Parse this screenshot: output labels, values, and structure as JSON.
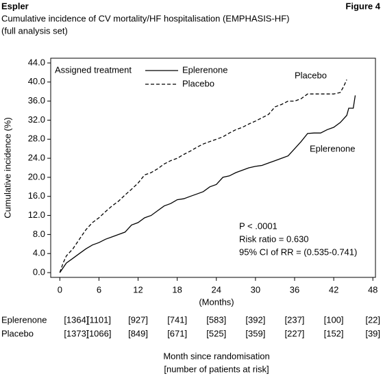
{
  "header": {
    "left": "Espler",
    "right": "Figure 4"
  },
  "chart_data": {
    "type": "line",
    "title": "Cumulative incidence of CV mortality/HF hospitalisation (EMPHASIS-HF)",
    "subtitle": "(full analysis set)",
    "y_label": "Cumulative incidence (%)",
    "x_label": "(Months)",
    "legend_title": "Assigned treatment",
    "xlim": [
      -1.4,
      48.4
    ],
    "ylim": [
      -1,
      45
    ],
    "xticks": [
      0,
      6,
      12,
      18,
      24,
      30,
      36,
      42,
      48
    ],
    "yticks": [
      {
        "value": 0,
        "label": "0.0"
      },
      {
        "value": 4,
        "label": "4.0"
      },
      {
        "value": 8,
        "label": "8.0"
      },
      {
        "value": 12,
        "label": "12.0"
      },
      {
        "value": 16,
        "label": "16.0"
      },
      {
        "value": 20,
        "label": "20.0"
      },
      {
        "value": 24,
        "label": "24.0"
      },
      {
        "value": 28,
        "label": "28.0"
      },
      {
        "value": 32,
        "label": "32.0"
      },
      {
        "value": 36,
        "label": "36.0"
      },
      {
        "value": 40,
        "label": "40.0"
      },
      {
        "value": 44,
        "label": "44.0"
      }
    ],
    "series": [
      {
        "name": "Eplerenone",
        "color": "#000000",
        "dash": false,
        "x": [
          0,
          1,
          2,
          3,
          4,
          5,
          6,
          7,
          8,
          9,
          10,
          11,
          12,
          13,
          14,
          15,
          16,
          17,
          18,
          19,
          20,
          21,
          22,
          23,
          24,
          25,
          26,
          27,
          28,
          29,
          30,
          31,
          32,
          33,
          34,
          35,
          36,
          37,
          38,
          39,
          40,
          41,
          42,
          43,
          44,
          44.3,
          45,
          45.3
        ],
        "values": [
          0,
          2,
          3,
          4,
          5,
          5.8,
          6.3,
          7,
          7.5,
          8,
          8.5,
          10,
          10.5,
          11.5,
          12,
          13,
          14,
          14.5,
          15.3,
          15.5,
          16,
          16.5,
          17,
          18,
          18.5,
          20,
          20.3,
          21,
          21.5,
          22,
          22.3,
          22.5,
          23,
          23.5,
          24,
          24.5,
          26,
          27.5,
          29.2,
          29.3,
          29.3,
          30,
          30.5,
          31.5,
          33,
          34.5,
          34.5,
          37.2
        ]
      },
      {
        "name": "Placebo",
        "color": "#000000",
        "dash": true,
        "x": [
          0,
          0.5,
          1,
          2,
          3,
          4,
          5,
          6,
          7,
          8,
          9,
          10,
          11,
          12,
          13,
          14,
          15,
          16,
          17,
          18,
          19,
          20,
          21,
          22,
          23,
          24,
          25,
          26,
          27,
          28,
          29,
          30,
          31,
          32,
          33,
          34,
          35,
          36,
          37,
          38,
          40,
          42,
          43,
          43.5,
          44
        ],
        "values": [
          0,
          2,
          3.5,
          5,
          7,
          9,
          10.5,
          11.5,
          12.8,
          14,
          15,
          16.3,
          17.5,
          18.8,
          20.5,
          21,
          21.8,
          22.8,
          23.5,
          24,
          24.8,
          25.5,
          26.3,
          27,
          27.5,
          28,
          28.5,
          29.3,
          30,
          30.5,
          31.2,
          31.8,
          32.5,
          33.2,
          34.8,
          35.3,
          36,
          36,
          36.5,
          37.5,
          37.5,
          37.5,
          37.8,
          39,
          40.5
        ]
      }
    ],
    "annotations": [
      "Placebo",
      "Eplerenone",
      "P < .0001",
      "Risk ratio = 0.630",
      "95% CI of RR = (0.535-0.741)"
    ]
  },
  "at_risk": {
    "months": [
      0,
      6,
      12,
      18,
      24,
      30,
      36,
      42,
      48
    ],
    "rows": [
      {
        "name": "Eplerenone",
        "values": [
          "[1364]",
          "[1101]",
          "[927]",
          "[741]",
          "[583]",
          "[392]",
          "[237]",
          "[100]",
          "[22]"
        ]
      },
      {
        "name": "Placebo",
        "values": [
          "[1373]",
          "[1066]",
          "[849]",
          "[671]",
          "[525]",
          "[359]",
          "[227]",
          "[152]",
          "[39]"
        ]
      }
    ],
    "caption": [
      "Month since randomisation",
      "[number of patients at risk]"
    ]
  }
}
